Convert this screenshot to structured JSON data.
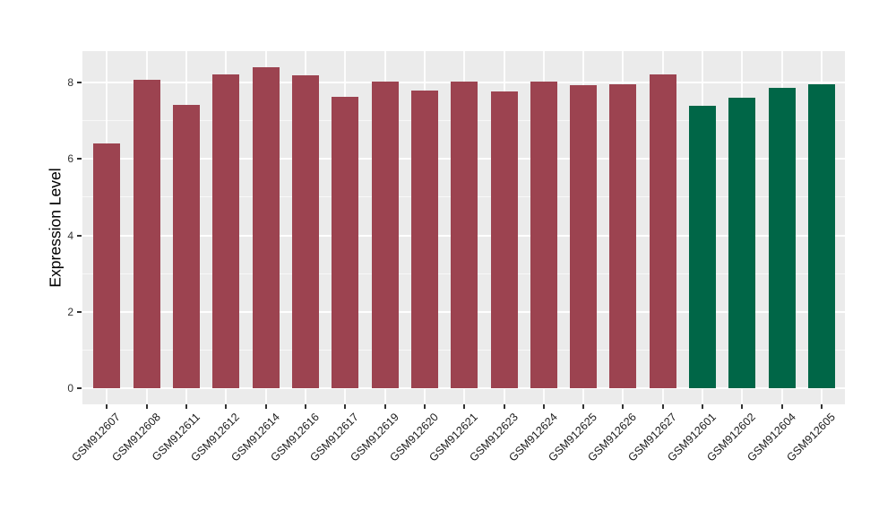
{
  "figure": {
    "background": "#FFFFFF",
    "kind": "ggplot-style expression bar chart"
  },
  "chart_data": {
    "type": "bar",
    "title": "",
    "xlabel": "",
    "ylabel": "Expression Level",
    "categories": [
      "GSM912607",
      "GSM912608",
      "GSM912611",
      "GSM912612",
      "GSM912614",
      "GSM912616",
      "GSM912617",
      "GSM912619",
      "GSM912620",
      "GSM912621",
      "GSM912623",
      "GSM912624",
      "GSM912625",
      "GSM912626",
      "GSM912627",
      "GSM912601",
      "GSM912602",
      "GSM912604",
      "GSM912605"
    ],
    "values": [
      6.41,
      8.07,
      7.41,
      8.22,
      8.4,
      8.18,
      7.62,
      8.03,
      7.8,
      8.03,
      7.76,
      8.03,
      7.92,
      7.96,
      8.2,
      7.39,
      7.6,
      7.86,
      7.96
    ],
    "bar_colors": [
      "#9C4350",
      "#9C4350",
      "#9C4350",
      "#9C4350",
      "#9C4350",
      "#9C4350",
      "#9C4350",
      "#9C4350",
      "#9C4350",
      "#9C4350",
      "#9C4350",
      "#9C4350",
      "#9C4350",
      "#9C4350",
      "#9C4350",
      "#006647",
      "#006647",
      "#006647",
      "#006647"
    ],
    "group_palette": {
      "maroon": "#9C4350",
      "green": "#006647"
    },
    "yticks": [
      0,
      2,
      4,
      6,
      8
    ],
    "yticks_minor": [
      1,
      3,
      5,
      7
    ],
    "ylim": [
      -0.42,
      8.82
    ],
    "x_tick_angle": -45,
    "grid": "on",
    "legend_position": "none",
    "panel_bg": "#EBEBEB",
    "grid_color": "#FFFFFF",
    "tick_color": "#333333"
  }
}
